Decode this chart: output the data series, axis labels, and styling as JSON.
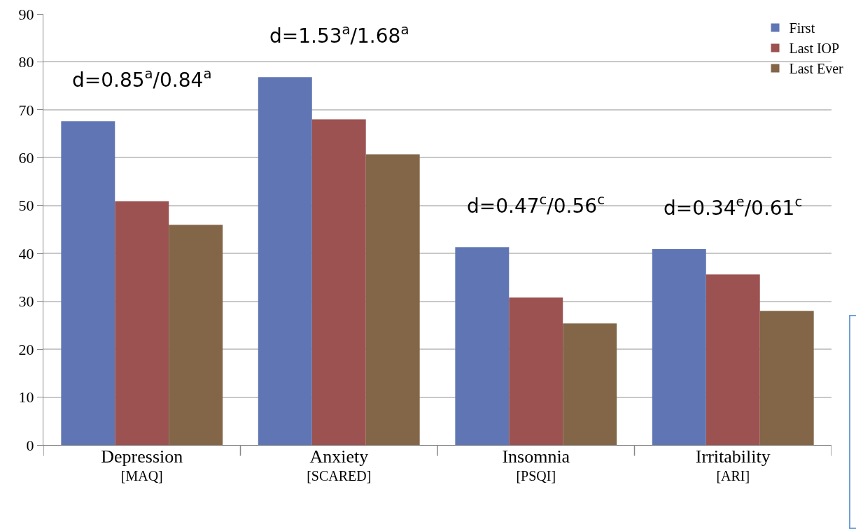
{
  "chart_data": {
    "type": "bar",
    "categories": [
      "Depression\n[MAQ]",
      "Anxiety\n[SCARED]",
      "Insomnia\n[PSQI]",
      "Irritability\n[ARI]"
    ],
    "series": [
      {
        "name": "First",
        "color": "#6076b4",
        "values": [
          67.6,
          76.8,
          41.3,
          40.9
        ]
      },
      {
        "name": "Last IOP",
        "color": "#9b5250",
        "values": [
          50.9,
          68.0,
          30.8,
          35.6
        ]
      },
      {
        "name": "Last Ever",
        "color": "#836648",
        "values": [
          46.0,
          60.7,
          25.4,
          28.0
        ]
      }
    ],
    "ylim": [
      0,
      90
    ],
    "yticks": [
      0,
      10,
      20,
      30,
      40,
      50,
      60,
      70,
      80,
      90
    ],
    "grid": "y",
    "legend": "top right",
    "annotations": [
      "d=0.85$^{a}$/0.84$^{a}$",
      "d=1.53$^{a}$/1.68$^{a}$",
      "d=0.47$^{c}$/0.56$^{c}$",
      "d=0.34$^{e}$/0.61$^{c}$"
    ]
  }
}
